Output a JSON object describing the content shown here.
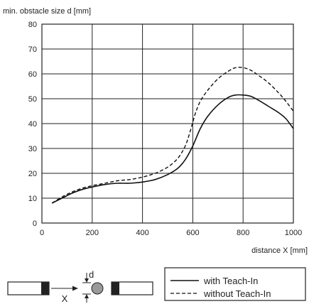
{
  "chart_data": {
    "type": "line",
    "title": "",
    "ylabel": "min. obstacle size d [mm]",
    "xlabel": "distance X [mm]",
    "xlim": [
      0,
      1000
    ],
    "ylim": [
      0,
      80
    ],
    "xticks": [
      0,
      200,
      400,
      600,
      800,
      1000
    ],
    "yticks": [
      0,
      10,
      20,
      30,
      40,
      50,
      60,
      70,
      80
    ],
    "grid": true,
    "legend_position": "bottom-right",
    "series": [
      {
        "name": "with Teach-In",
        "style": "solid",
        "x": [
          40,
          80,
          120,
          160,
          200,
          250,
          300,
          350,
          400,
          450,
          500,
          540,
          570,
          600,
          630,
          660,
          700,
          740,
          770,
          800,
          830,
          860,
          900,
          940,
          970,
          1000
        ],
        "y": [
          8,
          10,
          12,
          13.5,
          14.5,
          15.5,
          16,
          16,
          16.5,
          17.5,
          19.5,
          22,
          25.5,
          31,
          38,
          43,
          47.5,
          50.5,
          51.5,
          51.5,
          51,
          49.5,
          47,
          44.5,
          42,
          38
        ]
      },
      {
        "name": "without Teach-In",
        "style": "dashed",
        "x": [
          40,
          80,
          120,
          160,
          200,
          250,
          300,
          350,
          400,
          450,
          500,
          540,
          570,
          590,
          610,
          630,
          660,
          700,
          740,
          770,
          800,
          830,
          860,
          900,
          940,
          970,
          1000
        ],
        "y": [
          8,
          10.5,
          12.5,
          14,
          15,
          16,
          17,
          17.5,
          18.5,
          20,
          22.5,
          26,
          31,
          37,
          44,
          49,
          53.5,
          58,
          61,
          62.5,
          62.5,
          61.5,
          59.5,
          56.5,
          52.5,
          49,
          45
        ]
      }
    ],
    "diagram": {
      "distance_label": "X",
      "size_label": "d"
    }
  }
}
